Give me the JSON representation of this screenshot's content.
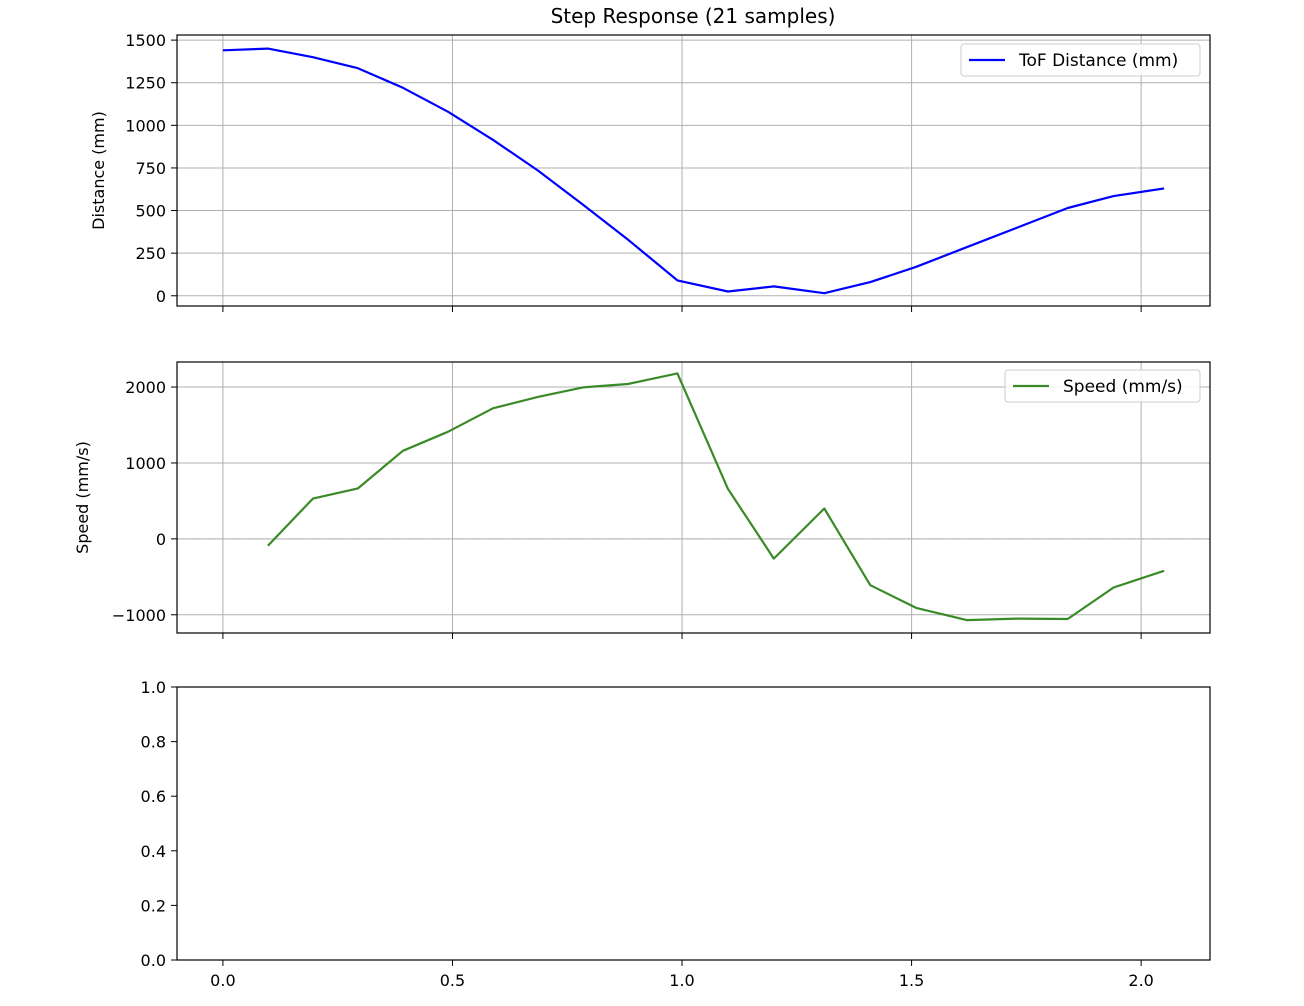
{
  "title": "Step Response (21 samples)",
  "chart_data": [
    {
      "type": "line",
      "ylabel": "Distance (mm)",
      "xlim": [
        -0.1,
        2.15
      ],
      "ylim": [
        -60,
        1530
      ],
      "yticks": [
        0,
        250,
        500,
        750,
        1000,
        1250,
        1500
      ],
      "yticklabels": [
        "0",
        "250",
        "500",
        "750",
        "1000",
        "1250",
        "1500"
      ],
      "xticks": [
        0,
        0.5,
        1.0,
        1.5,
        2.0
      ],
      "xticklabels_visible": false,
      "grid": true,
      "legend_position": "top-right",
      "series": [
        {
          "name": "ToF Distance (mm)",
          "color": "#0000ff",
          "x": [
            0.0,
            0.098,
            0.196,
            0.294,
            0.392,
            0.49,
            0.588,
            0.686,
            0.784,
            0.882,
            0.99,
            1.1,
            1.2,
            1.31,
            1.41,
            1.51,
            1.62,
            1.73,
            1.84,
            1.94,
            2.05
          ],
          "y": [
            1440,
            1450,
            1400,
            1335,
            1220,
            1080,
            915,
            735,
            535,
            330,
            90,
            25,
            55,
            15,
            80,
            170,
            285,
            400,
            515,
            585,
            630
          ]
        }
      ]
    },
    {
      "type": "line",
      "ylabel": "Speed (mm/s)",
      "xlim": [
        -0.1,
        2.15
      ],
      "ylim": [
        -1240,
        2330
      ],
      "yticks": [
        -1000,
        0,
        1000,
        2000
      ],
      "yticklabels": [
        "−1000",
        "0",
        "1000",
        "2000"
      ],
      "xticks": [
        0,
        0.5,
        1.0,
        1.5,
        2.0
      ],
      "xticklabels_visible": false,
      "grid": true,
      "zero_line": true,
      "legend_position": "top-right",
      "series": [
        {
          "name": "Speed (mm/s)",
          "color": "#3a8a28",
          "x": [
            0.098,
            0.196,
            0.294,
            0.392,
            0.49,
            0.588,
            0.686,
            0.784,
            0.882,
            0.99,
            1.1,
            1.2,
            1.31,
            1.41,
            1.51,
            1.62,
            1.73,
            1.84,
            1.94,
            2.05
          ],
          "y": [
            -90,
            530,
            665,
            1160,
            1410,
            1720,
            1870,
            1995,
            2040,
            2180,
            660,
            -260,
            400,
            -610,
            -910,
            -1070,
            -1050,
            -1055,
            -640,
            -420
          ]
        }
      ]
    },
    {
      "type": "line",
      "ylabel": "",
      "xlim": [
        -0.1,
        2.15
      ],
      "ylim": [
        0,
        1
      ],
      "yticks": [
        0,
        0.2,
        0.4,
        0.6,
        0.8,
        1.0
      ],
      "yticklabels": [
        "0.0",
        "0.2",
        "0.4",
        "0.6",
        "0.8",
        "1.0"
      ],
      "xticks": [
        0,
        0.5,
        1.0,
        1.5,
        2.0
      ],
      "xticklabels": [
        "0.0",
        "0.5",
        "1.0",
        "1.5",
        "2.0"
      ],
      "xticklabels_visible": true,
      "grid": false,
      "series": []
    }
  ]
}
